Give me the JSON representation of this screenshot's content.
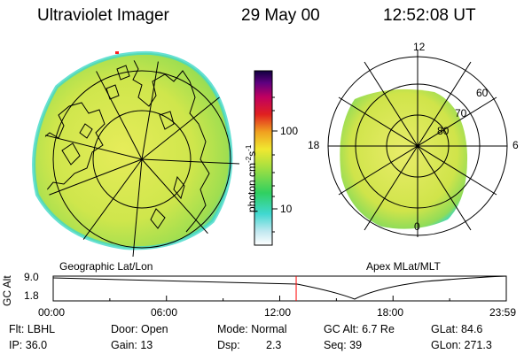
{
  "header": {
    "instrument": "Ultraviolet Imager",
    "date": "29 May 00",
    "time": "12:52:08 UT"
  },
  "geo_panel": {
    "label": "Geographic Lat/Lon"
  },
  "mag_panel": {
    "label": "Apex MLat/MLT",
    "mlt_labels": {
      "top": "12",
      "left": "18",
      "right": "6",
      "bottom": "0"
    },
    "lat_labels": [
      "60",
      "70",
      "80"
    ]
  },
  "colorbar": {
    "axis_label": "photon cm",
    "exp1": "-2",
    "mid": "s",
    "exp2": "-1",
    "tick_100": "100",
    "tick_10": "10"
  },
  "altitude_plot": {
    "ylabel": "GC Alt",
    "ytick_top": "9.0",
    "ytick_bottom": "1.8",
    "x_ticks": [
      "00:00",
      "06:00",
      "12:00",
      "18:00",
      "23:59"
    ],
    "current_marker_hour": 12.87
  },
  "info": {
    "flt": "Flt: LBHL",
    "door": "Door: Open",
    "mode": "Mode: Normal",
    "gc_alt": "GC Alt: 6.7 Re",
    "glat": "GLat:  84.6",
    "ip": "IP: 36.0",
    "gain": "Gain: 13",
    "dsp_label": "Dsp:",
    "dsp_value": "2.3",
    "seq": "Seq: 39",
    "glon": "GLon: 271.3"
  },
  "colors": {
    "aurora_fill": "#d8e84a",
    "aurora_rim": "#38d8c8",
    "marker": "#ff0000"
  }
}
